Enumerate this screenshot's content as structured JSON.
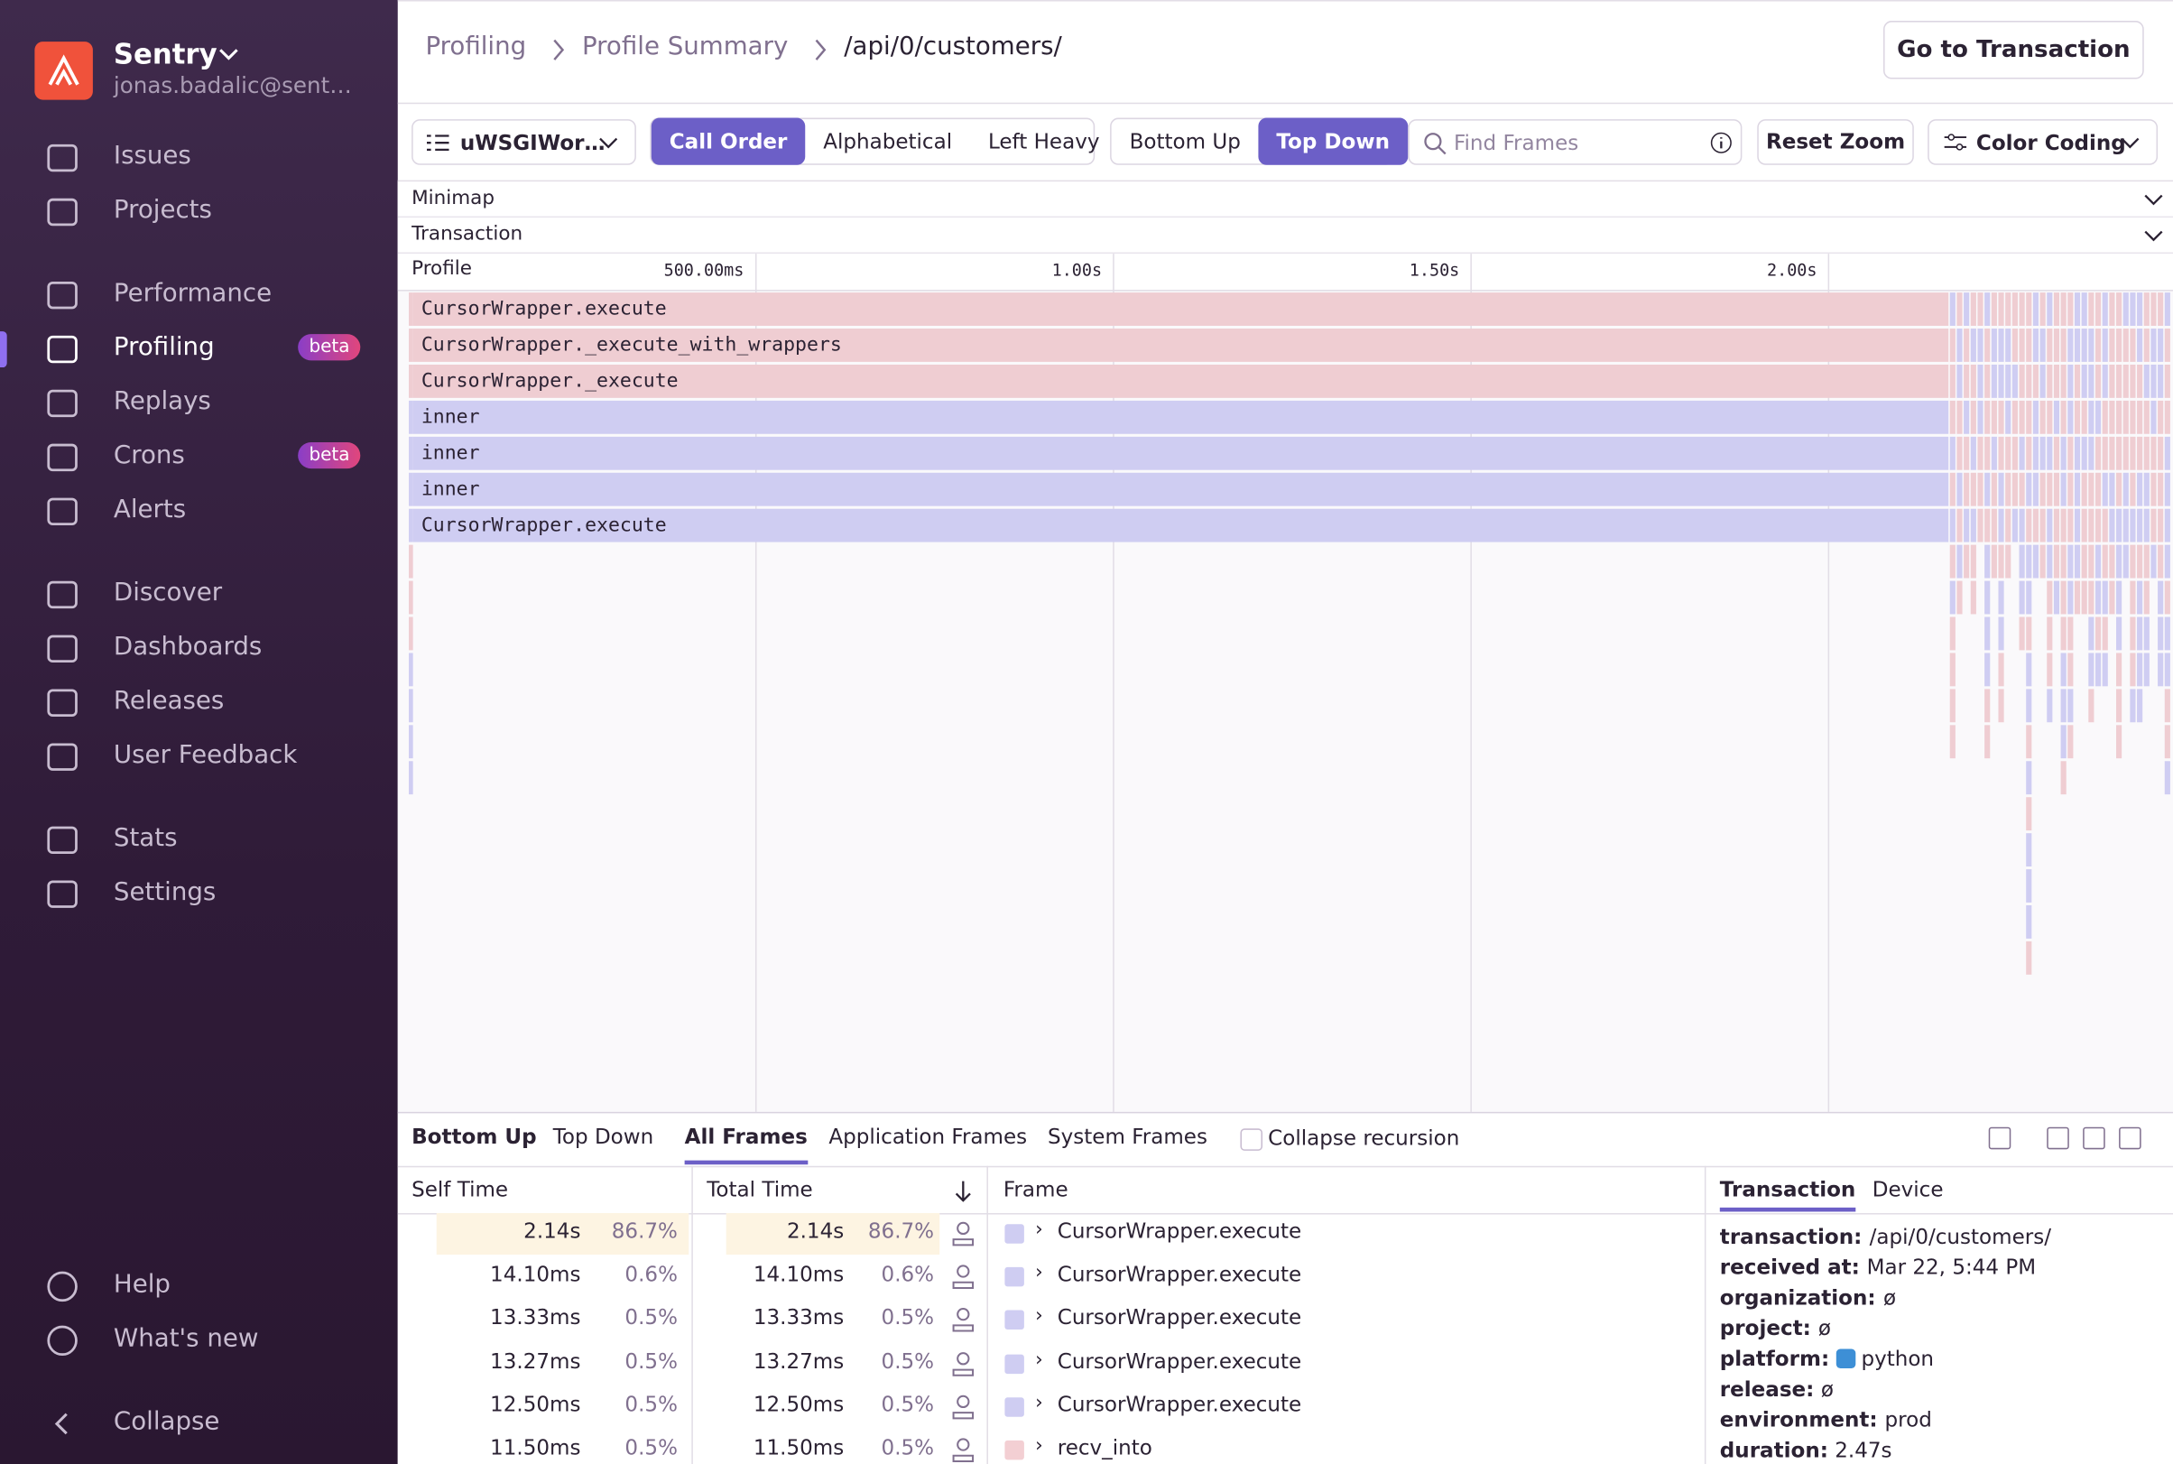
{
  "sidebar": {
    "org": "Sentry",
    "user": "jonas.badalic@sent…",
    "nav": [
      {
        "label": "Issues"
      },
      {
        "label": "Projects"
      },
      {
        "label": "Performance"
      },
      {
        "label": "Profiling",
        "badge": "beta"
      },
      {
        "label": "Replays"
      },
      {
        "label": "Crons",
        "badge": "beta"
      },
      {
        "label": "Alerts"
      },
      {
        "label": "Discover"
      },
      {
        "label": "Dashboards"
      },
      {
        "label": "Releases"
      },
      {
        "label": "User Feedback"
      },
      {
        "label": "Stats"
      },
      {
        "label": "Settings"
      }
    ],
    "footer": [
      {
        "label": "Help"
      },
      {
        "label": "What's new"
      },
      {
        "label": "Collapse"
      }
    ]
  },
  "header": {
    "breadcrumbs": [
      "Profiling",
      "Profile Summary",
      "/api/0/customers/"
    ],
    "button": "Go to Transaction"
  },
  "toolbar": {
    "thread": "uWSGIWor…",
    "sort": [
      "Call Order",
      "Alphabetical",
      "Left Heavy"
    ],
    "view": [
      "Bottom Up",
      "Top Down"
    ],
    "search_placeholder": "Find Frames",
    "reset": "Reset Zoom",
    "color_coding": "Color Coding"
  },
  "flamegraph": {
    "sections": [
      "Minimap",
      "Transaction"
    ],
    "profile_label": "Profile",
    "ticks": [
      "500.00ms",
      "1.00s",
      "1.50s",
      "2.00s"
    ],
    "frames": [
      {
        "name": "CursorWrapper.execute",
        "color": "#efcdd2"
      },
      {
        "name": "CursorWrapper._execute_with_wrappers",
        "color": "#efcdd2"
      },
      {
        "name": "CursorWrapper._execute",
        "color": "#efcdd2"
      },
      {
        "name": "inner",
        "color": "#cfcdf2"
      },
      {
        "name": "inner",
        "color": "#cfcdf2"
      },
      {
        "name": "inner",
        "color": "#cfcdf2"
      },
      {
        "name": "CursorWrapper.execute",
        "color": "#cfcdf2"
      }
    ]
  },
  "panel": {
    "tabs": [
      "Bottom Up",
      "Top Down"
    ],
    "filters": [
      "All Frames",
      "Application Frames",
      "System Frames"
    ],
    "collapse": "Collapse recursion",
    "columns": [
      "Self Time",
      "Total Time",
      "Frame"
    ],
    "rows": [
      {
        "self": "2.14s",
        "self_pct": "86.7%",
        "total": "2.14s",
        "total_pct": "86.7%",
        "frame": "CursorWrapper.execute",
        "color": "#cfcdf2"
      },
      {
        "self": "14.10ms",
        "self_pct": "0.6%",
        "total": "14.10ms",
        "total_pct": "0.6%",
        "frame": "CursorWrapper.execute",
        "color": "#cfcdf2"
      },
      {
        "self": "13.33ms",
        "self_pct": "0.5%",
        "total": "13.33ms",
        "total_pct": "0.5%",
        "frame": "CursorWrapper.execute",
        "color": "#cfcdf2"
      },
      {
        "self": "13.27ms",
        "self_pct": "0.5%",
        "total": "13.27ms",
        "total_pct": "0.5%",
        "frame": "CursorWrapper.execute",
        "color": "#cfcdf2"
      },
      {
        "self": "12.50ms",
        "self_pct": "0.5%",
        "total": "12.50ms",
        "total_pct": "0.5%",
        "frame": "CursorWrapper.execute",
        "color": "#cfcdf2"
      },
      {
        "self": "11.50ms",
        "self_pct": "0.5%",
        "total": "11.50ms",
        "total_pct": "0.5%",
        "frame": "recv_into",
        "color": "#f3cfd3"
      }
    ],
    "details_tabs": [
      "Transaction",
      "Device"
    ],
    "details": [
      {
        "key": "transaction:",
        "value": "/api/0/customers/"
      },
      {
        "key": "received at:",
        "value": "Mar 22, 5:44 PM"
      },
      {
        "key": "organization:",
        "value": "ø"
      },
      {
        "key": "project:",
        "value": "ø"
      },
      {
        "key": "platform:",
        "value": "python"
      },
      {
        "key": "release:",
        "value": "ø"
      },
      {
        "key": "environment:",
        "value": "prod"
      },
      {
        "key": "duration:",
        "value": "2.47s"
      }
    ]
  }
}
